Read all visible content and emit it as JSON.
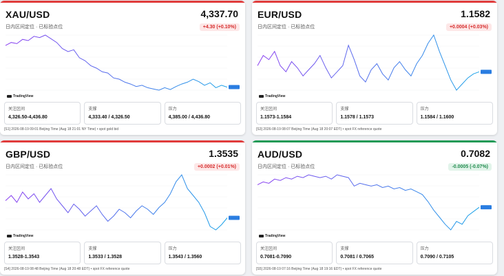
{
  "cards": [
    {
      "pair": "XAU/USD",
      "price": "4,337.70",
      "subtitle": "日内区间定位 · 已标验点位",
      "change": "+4.30 (+0.10%)",
      "direction": "up",
      "accent": "#e03b3b",
      "watermark": "TradingView",
      "levels": [
        {
          "label": "关注区间",
          "value": "4,326.50-4,436.80"
        },
        {
          "label": "支撑",
          "value": "4,333.40 / 4,326.50"
        },
        {
          "label": "压力",
          "value": "4,385.00 / 4,436.80"
        }
      ],
      "footer": "[S1] 2026-08-19 09:01 Beijing Time (Aug 18 21:01 NY Time) • spot gold bid",
      "chart_data": {
        "type": "line",
        "series": [
          {
            "values": [
              4405,
              4410,
              4408,
              4415,
              4413,
              4420,
              4418,
              4422,
              4416,
              4410,
              4400,
              4395,
              4398,
              4385,
              4380,
              4372,
              4368,
              4362,
              4360,
              4352,
              4350,
              4345,
              4342,
              4338,
              4340,
              4336,
              4334,
              4332,
              4336,
              4333,
              4338,
              4342,
              4345,
              4350,
              4346,
              4340,
              4344,
              4336,
              4340,
              4337
            ]
          }
        ],
        "color_start": "#8a3ef0",
        "color_end": "#1aa3e8"
      }
    },
    {
      "pair": "EUR/USD",
      "price": "1.1582",
      "subtitle": "日内区间定位 · 已标验点位",
      "change": "+0.0004 (+0.03%)",
      "direction": "up",
      "accent": "#e03b3b",
      "watermark": "TradingView",
      "levels": [
        {
          "label": "关注区间",
          "value": "1.1573-1.1584"
        },
        {
          "label": "支撑",
          "value": "1.1578 / 1.1573"
        },
        {
          "label": "压力",
          "value": "1.1584 / 1.1600"
        }
      ],
      "footer": "[S3] 2026-08-19 08:07 Beijing Time (Aug 18 20:07 EDT) • spot FX reference quote",
      "chart_data": {
        "type": "line",
        "series": [
          {
            "values": [
              1.1585,
              1.159,
              1.1588,
              1.1592,
              1.1585,
              1.1582,
              1.1587,
              1.1584,
              1.158,
              1.1583,
              1.1586,
              1.159,
              1.1584,
              1.1579,
              1.1582,
              1.1585,
              1.1595,
              1.1588,
              1.158,
              1.1577,
              1.1583,
              1.1586,
              1.1581,
              1.1578,
              1.1584,
              1.1587,
              1.1583,
              1.158,
              1.1586,
              1.159,
              1.1596,
              1.16,
              1.1592,
              1.1585,
              1.1578,
              1.1573,
              1.1576,
              1.1579,
              1.1581,
              1.1582
            ]
          }
        ],
        "color_start": "#8a3ef0",
        "color_end": "#1aa3e8"
      }
    },
    {
      "pair": "GBP/USD",
      "price": "1.3535",
      "subtitle": "日内区间定位 · 已标验点位",
      "change": "+0.0002 (+0.01%)",
      "direction": "up",
      "accent": "#e03b3b",
      "watermark": "TradingView",
      "levels": [
        {
          "label": "关注区间",
          "value": "1.3528-1.3543"
        },
        {
          "label": "支撑",
          "value": "1.3533 / 1.3528"
        },
        {
          "label": "压力",
          "value": "1.3543 / 1.3560"
        }
      ],
      "footer": "[S4] 2026-08-19 08:48 Beijing Time (Aug 18 20:48 EDT) • spot FX reference quote",
      "chart_data": {
        "type": "line",
        "series": [
          {
            "values": [
              1.3545,
              1.3548,
              1.3544,
              1.355,
              1.3546,
              1.3549,
              1.3544,
              1.3548,
              1.3552,
              1.3546,
              1.3542,
              1.3538,
              1.3543,
              1.354,
              1.3536,
              1.3539,
              1.3542,
              1.3537,
              1.3533,
              1.3536,
              1.354,
              1.3538,
              1.3535,
              1.3539,
              1.3542,
              1.354,
              1.3537,
              1.3541,
              1.3544,
              1.3549,
              1.3556,
              1.356,
              1.3552,
              1.3548,
              1.3544,
              1.3538,
              1.353,
              1.3528,
              1.3531,
              1.3535
            ]
          }
        ],
        "color_start": "#8a3ef0",
        "color_end": "#1aa3e8"
      }
    },
    {
      "pair": "AUD/USD",
      "price": "0.7082",
      "subtitle": "日内区间定位 · 已标验点位",
      "change": "-0.0005 (-0.07%)",
      "direction": "down",
      "accent": "#1f9a56",
      "watermark": "TradingView",
      "levels": [
        {
          "label": "关注区间",
          "value": "0.7081-0.7090"
        },
        {
          "label": "支撑",
          "value": "0.7081 / 0.7065"
        },
        {
          "label": "压力",
          "value": "0.7090 / 0.7105"
        }
      ],
      "footer": "[S5] 2026-08-19 07:16 Beijing Time (Aug 18 19:16 EDT) • spot FX reference quote",
      "chart_data": {
        "type": "line",
        "series": [
          {
            "values": [
              0.7098,
              0.71,
              0.7099,
              0.7102,
              0.7101,
              0.7103,
              0.7102,
              0.7104,
              0.7103,
              0.7105,
              0.7104,
              0.7103,
              0.7104,
              0.7102,
              0.7105,
              0.7104,
              0.7103,
              0.7097,
              0.7099,
              0.7098,
              0.7097,
              0.7098,
              0.7096,
              0.7097,
              0.7095,
              0.7096,
              0.7094,
              0.7095,
              0.7093,
              0.7091,
              0.7086,
              0.708,
              0.7075,
              0.707,
              0.7066,
              0.7072,
              0.707,
              0.7076,
              0.7079,
              0.7082
            ]
          }
        ],
        "color_start": "#8a3ef0",
        "color_end": "#1aa3e8"
      }
    }
  ]
}
